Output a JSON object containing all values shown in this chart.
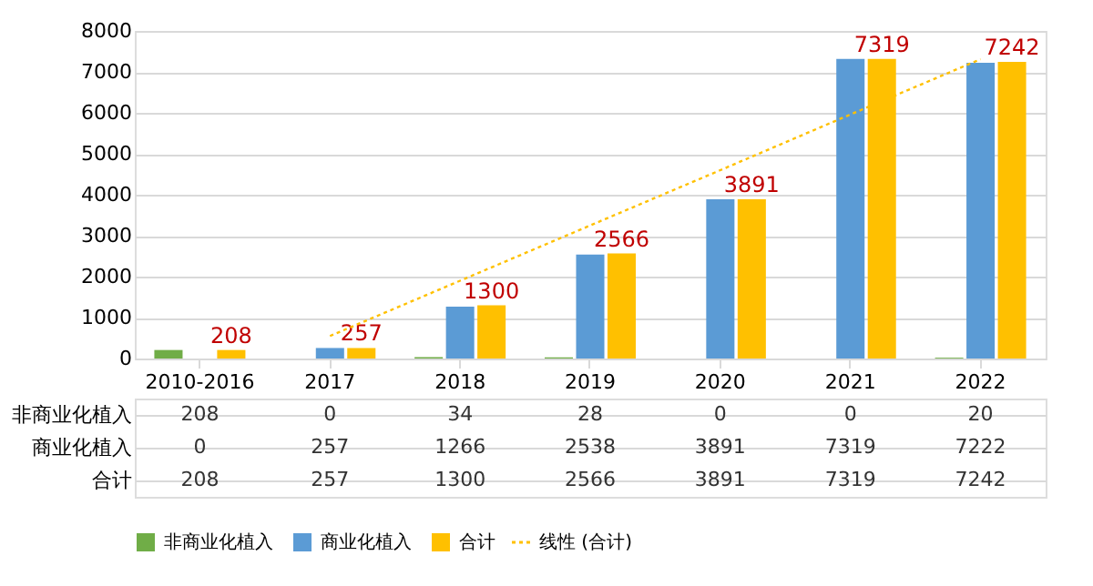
{
  "chart_data": {
    "type": "bar",
    "categories": [
      "2010-2016",
      "2017",
      "2018",
      "2019",
      "2020",
      "2021",
      "2022"
    ],
    "series": [
      {
        "name": "非商业化植入",
        "color": "#70ad47",
        "values": [
          208,
          0,
          34,
          28,
          0,
          0,
          20
        ],
        "value_labels": [
          "208",
          "0",
          "34",
          "28",
          "0",
          "0",
          "20"
        ]
      },
      {
        "name": "商业化植入",
        "color": "#5b9bd5",
        "values": [
          0,
          257,
          1266,
          2538,
          3891,
          7319,
          7222
        ],
        "value_labels": [
          "0",
          "257",
          "1266",
          "2538",
          "3891",
          "7319",
          "7222"
        ]
      },
      {
        "name": "合计",
        "color": "#ffc000",
        "values": [
          208,
          257,
          1300,
          2566,
          3891,
          7319,
          7242
        ],
        "value_labels": [
          "208",
          "257",
          "1300",
          "2566",
          "3891",
          "7319",
          "7242"
        ]
      },
      {
        "name": "线性 (合计)",
        "type": "line",
        "color": "#ffc000",
        "line_style": "dotted",
        "marker": "none",
        "values": [
          null,
          550,
          1900,
          3250,
          4600,
          5960,
          7310
        ]
      }
    ],
    "ylim": [
      0,
      8000
    ],
    "yticks": [
      0,
      1000,
      2000,
      3000,
      4000,
      5000,
      6000,
      7000,
      8000
    ],
    "grid": "y",
    "legend": "bottom"
  }
}
